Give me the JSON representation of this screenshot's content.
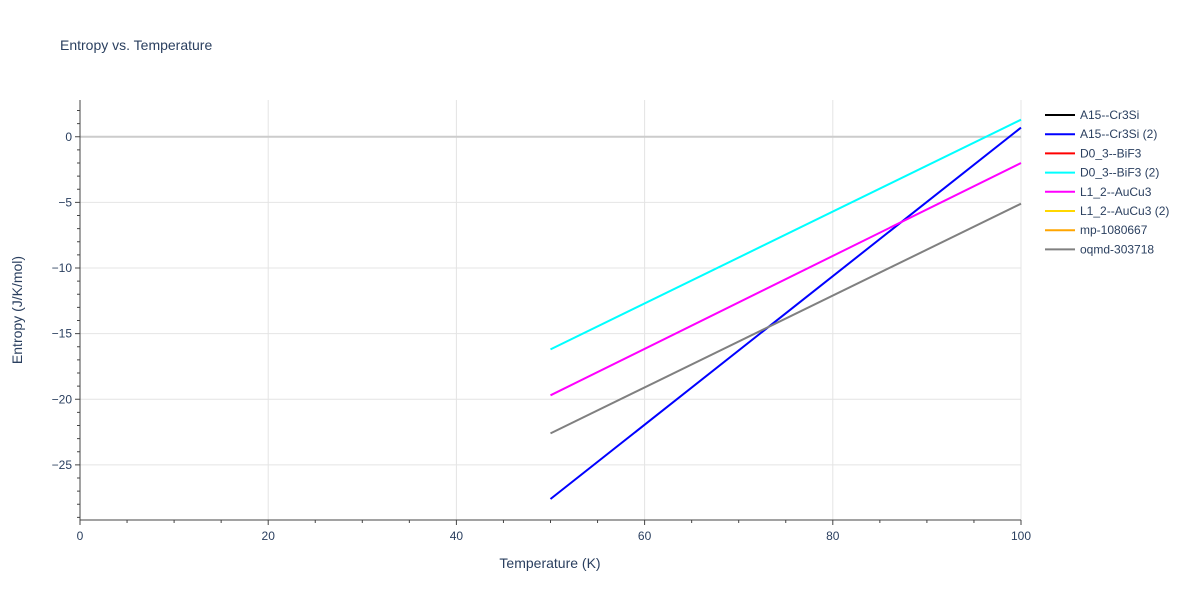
{
  "chart_data": {
    "type": "line",
    "title": "Entropy vs. Temperature",
    "xlabel": "Temperature (K)",
    "ylabel": "Entropy (J/K/mol)",
    "xlim": [
      0,
      100
    ],
    "ylim": [
      -29.2,
      2.8
    ],
    "xticks": [
      0,
      20,
      40,
      60,
      80,
      100
    ],
    "yticks": [
      0,
      -5,
      -10,
      -15,
      -20,
      -25
    ],
    "ytick_labels": [
      "0",
      "−5",
      "−10",
      "−15",
      "−20",
      "−25"
    ],
    "grid": true,
    "legend_position": "right",
    "series": [
      {
        "name": "A15--Cr3Si",
        "color": "#000000",
        "x": [],
        "y": []
      },
      {
        "name": "A15--Cr3Si (2)",
        "color": "#0000ff",
        "x": [
          50,
          100
        ],
        "y": [
          -27.6,
          0.7
        ]
      },
      {
        "name": "D0_3--BiF3",
        "color": "#ff0000",
        "x": [],
        "y": []
      },
      {
        "name": "D0_3--BiF3 (2)",
        "color": "#00ffff",
        "x": [
          50,
          100
        ],
        "y": [
          -16.2,
          1.3
        ]
      },
      {
        "name": "L1_2--AuCu3",
        "color": "#ff00ff",
        "x": [
          50,
          100
        ],
        "y": [
          -19.7,
          -2.0
        ]
      },
      {
        "name": "L1_2--AuCu3 (2)",
        "color": "#ffd700",
        "x": [],
        "y": []
      },
      {
        "name": "mp-1080667",
        "color": "#ffa500",
        "x": [],
        "y": []
      },
      {
        "name": "oqmd-303718",
        "color": "#808080",
        "x": [
          50,
          100
        ],
        "y": [
          -22.6,
          -5.1
        ]
      }
    ]
  }
}
